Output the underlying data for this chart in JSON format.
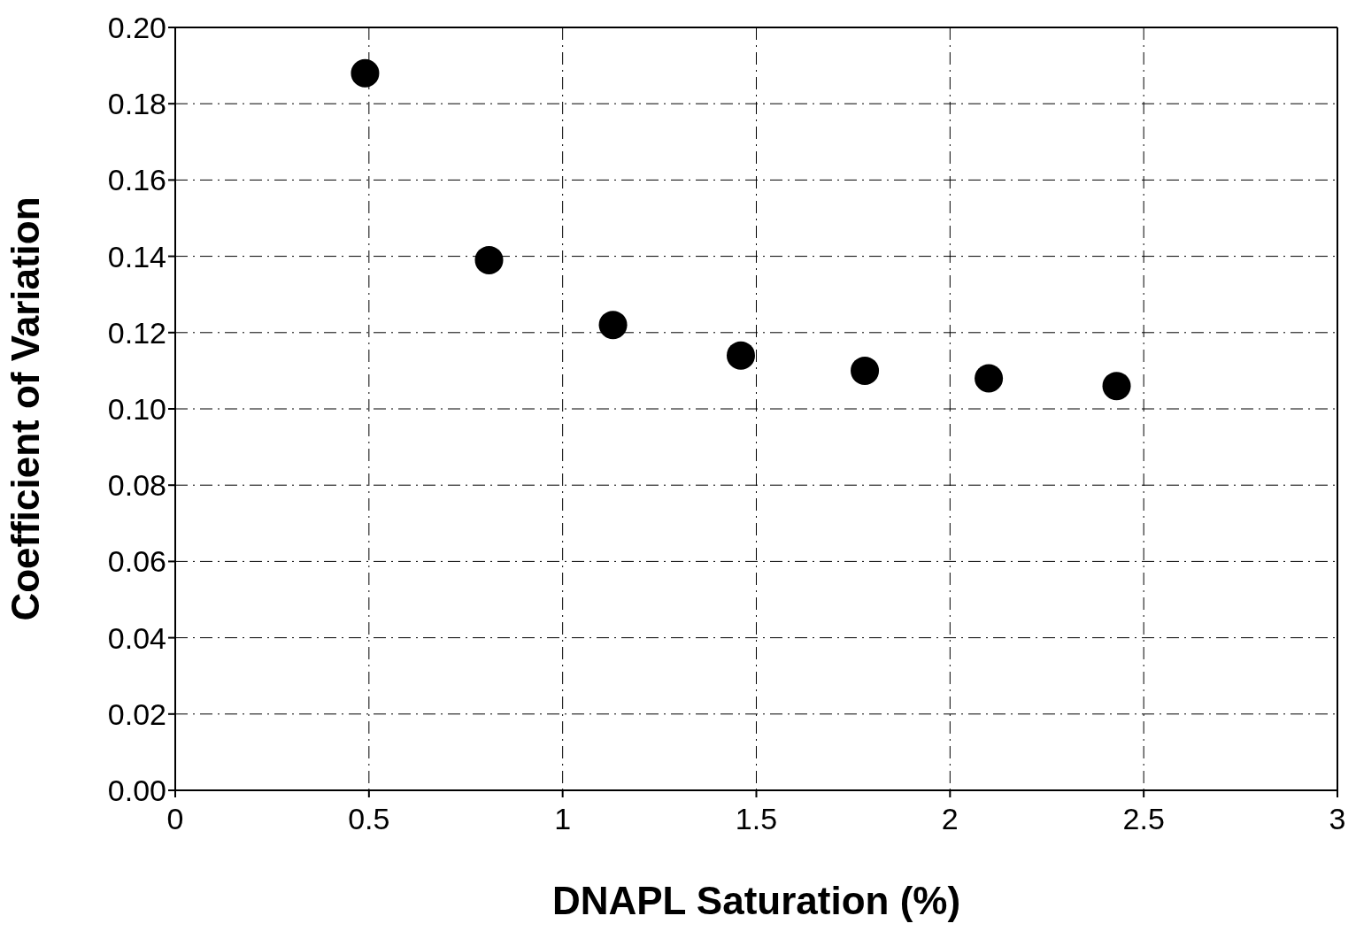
{
  "chart_data": {
    "type": "scatter",
    "xlabel": "DNAPL Saturation (%)",
    "ylabel": "Coefficient of Variation",
    "x": [
      0.49,
      0.81,
      1.13,
      1.46,
      1.78,
      2.1,
      2.43
    ],
    "series": [
      {
        "color": "#000000",
        "values": [
          0.188,
          0.139,
          0.122,
          0.114,
          0.11,
          0.108,
          0.106
        ]
      }
    ],
    "xlim": [
      0,
      3
    ],
    "xticks": [
      0,
      0.5,
      1,
      1.5,
      2,
      2.5,
      3
    ],
    "ylim": [
      0,
      0.2
    ],
    "yticks": [
      {
        "value": 0,
        "label": "0.00"
      },
      {
        "value": 0.02,
        "label": "0.02"
      },
      {
        "value": 0.04,
        "label": "0.04"
      },
      {
        "value": 0.06,
        "label": "0.06"
      },
      {
        "value": 0.08,
        "label": "0.08"
      },
      {
        "value": 0.1,
        "label": "0.10"
      },
      {
        "value": 0.12,
        "label": "0.12"
      },
      {
        "value": 0.14,
        "label": "0.14"
      },
      {
        "value": 0.16,
        "label": "0.16"
      },
      {
        "value": 0.18,
        "label": "0.18"
      },
      {
        "value": 0.2,
        "label": "0.20"
      }
    ],
    "grid": true,
    "marker": "circle",
    "legend": false
  }
}
